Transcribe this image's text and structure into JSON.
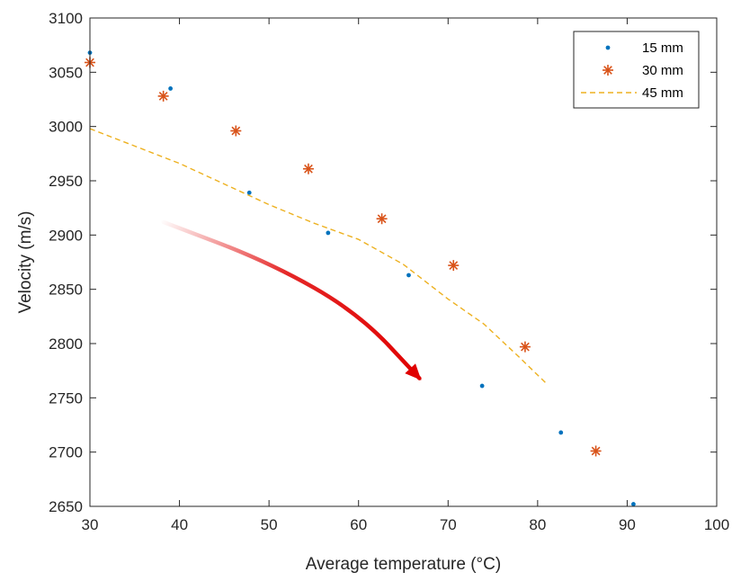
{
  "chart_data": {
    "type": "scatter",
    "title": "",
    "xlabel": "Average temperature (°C)",
    "ylabel": "Velocity (m/s)",
    "xlim": [
      30,
      100
    ],
    "ylim": [
      2650,
      3100
    ],
    "xticks": [
      30,
      40,
      50,
      60,
      70,
      80,
      90,
      100
    ],
    "yticks": [
      2650,
      2700,
      2750,
      2800,
      2850,
      2900,
      2950,
      3000,
      3050,
      3100
    ],
    "grid": false,
    "legend_position": "top-right",
    "series": [
      {
        "name": "15 mm",
        "style": "dot",
        "color": "#0072BD",
        "x": [
          30.0,
          39.0,
          47.8,
          56.6,
          65.6,
          73.8,
          82.6,
          90.7
        ],
        "y": [
          3068,
          3035,
          2939,
          2902,
          2863,
          2761,
          2718,
          2652
        ]
      },
      {
        "name": "30 mm",
        "style": "asterisk",
        "color": "#D95319",
        "x": [
          30.0,
          38.2,
          46.3,
          54.4,
          62.6,
          70.6,
          78.6,
          86.5
        ],
        "y": [
          3059,
          3028,
          2996,
          2961,
          2915,
          2872,
          2797,
          2701
        ]
      },
      {
        "name": "45 mm",
        "style": "dashed-line",
        "color": "#EDB120",
        "x": [
          30.0,
          35.0,
          40.0,
          45.0,
          50.0,
          55.0,
          60.0,
          65.0,
          70.0,
          74.0,
          78.0,
          81.0
        ],
        "y": [
          2998,
          2982,
          2966,
          2947,
          2928,
          2911,
          2896,
          2873,
          2841,
          2818,
          2787,
          2763
        ]
      }
    ],
    "annotations": [
      {
        "type": "arrow",
        "color": "#E00000",
        "from": [
          38.2,
          2912
        ],
        "via": [
          [
            50,
            2875
          ],
          [
            60,
            2828
          ]
        ],
        "to": [
          66.8,
          2768
        ]
      }
    ]
  }
}
